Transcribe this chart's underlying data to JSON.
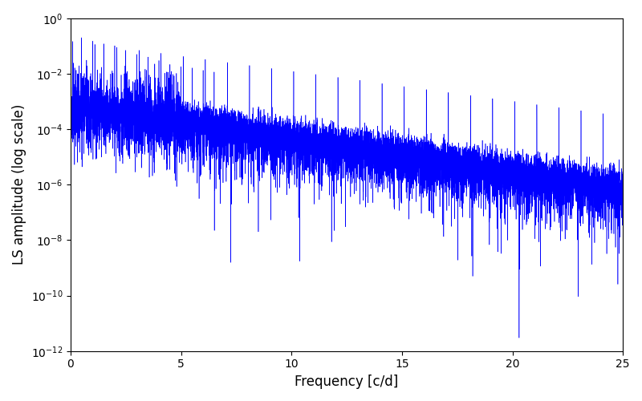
{
  "title": "",
  "xlabel": "Frequency [c/d]",
  "ylabel": "LS amplitude (log scale)",
  "line_color": "#0000ff",
  "xlim": [
    0,
    25
  ],
  "ylim": [
    1e-12,
    1.0
  ],
  "xfreq_max": 25.0,
  "num_points": 10000,
  "seed": 42,
  "figwidth": 8.0,
  "figheight": 5.0,
  "dpi": 100
}
